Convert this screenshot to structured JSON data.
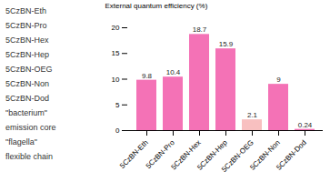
{
  "chart_data": {
    "type": "bar",
    "categories": [
      "5CzBN-Eth",
      "5CzBN-Pro",
      "5CzBN-Hex",
      "5CzBN-Hep",
      "5CzBN-OEG",
      "5CzBN-Non",
      "5CzBN-Dod"
    ],
    "values": [
      9.8,
      10.4,
      18.7,
      15.9,
      2.1,
      9.0,
      0.24
    ],
    "value_labels": [
      "9.8",
      "10.4",
      "18.7",
      "15.9",
      "2.1",
      "9",
      "0.24"
    ],
    "data_labels": true,
    "colors": [
      "#f472b6",
      "#f472b6",
      "#f472b6",
      "#f472b6",
      "#f8c0c0",
      "#f472b6",
      "#f472b6"
    ],
    "ylabel": "External quantum efficiency (%)",
    "ylim": [
      0,
      20
    ],
    "yticks": [
      0,
      5,
      10,
      15,
      20
    ],
    "grid": false,
    "annotations": [
      "5CzBN-Eth",
      "5CzBN-Pro",
      "5CzBN-Hex",
      "5CzBN-Hep",
      "5CzBN-OEG",
      "5CzBN-Non",
      "5CzBN-Dod",
      "\"bacterium\"",
      "emission core",
      "\"flagella\"",
      "flexible chain"
    ]
  }
}
